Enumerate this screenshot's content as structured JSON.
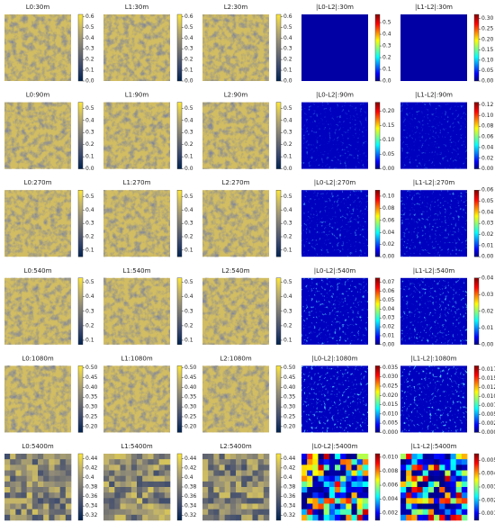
{
  "chart_data": [
    {
      "type": "image",
      "title": "L0:30m",
      "colormap": "cividis",
      "ylim": [
        0,
        0.62
      ],
      "yticks": [
        {
          "value": 0,
          "label": "0.0"
        },
        0.1,
        0.2,
        0.3,
        0.4,
        0.5,
        0.6
      ]
    },
    {
      "type": "image",
      "title": "L1:30m",
      "colormap": "cividis",
      "ylim": [
        0,
        0.62
      ],
      "yticks": [
        {
          "value": 0,
          "label": "0.0"
        },
        0.1,
        0.2,
        0.3,
        0.4,
        0.5,
        0.6
      ]
    },
    {
      "type": "image",
      "title": "L2:30m",
      "colormap": "cividis",
      "ylim": [
        0,
        0.62
      ],
      "yticks": [
        {
          "value": 0,
          "label": "0.0"
        },
        0.1,
        0.2,
        0.3,
        0.4,
        0.5,
        0.6
      ]
    },
    {
      "type": "image",
      "title": "|L0-L2|:30m",
      "colormap": "jet",
      "ylim": [
        0,
        0.57
      ],
      "yticks": [
        {
          "value": 0,
          "label": "0.0"
        },
        0.1,
        0.2,
        0.3,
        0.4,
        0.5
      ]
    },
    {
      "type": "image",
      "title": "|L1-L2|:30m",
      "colormap": "jet",
      "ylim": [
        0,
        0.32
      ],
      "yticks": [
        {
          "value": 0,
          "label": "0.00"
        },
        0.05,
        {
          "value": 0.1,
          "label": "0.10"
        },
        0.15,
        {
          "value": 0.2,
          "label": "0.20"
        },
        0.25,
        {
          "value": 0.3,
          "label": "0.30"
        }
      ]
    },
    {
      "type": "image",
      "title": "L0:90m",
      "colormap": "cividis",
      "ylim": [
        0,
        0.55
      ],
      "yticks": [
        {
          "value": 0,
          "label": "0.0"
        },
        0.1,
        0.2,
        0.3,
        0.4,
        0.5
      ]
    },
    {
      "type": "image",
      "title": "L1:90m",
      "colormap": "cividis",
      "ylim": [
        0,
        0.55
      ],
      "yticks": [
        {
          "value": 0,
          "label": "0.0"
        },
        0.1,
        0.2,
        0.3,
        0.4,
        0.5
      ]
    },
    {
      "type": "image",
      "title": "L2:90m",
      "colormap": "cividis",
      "ylim": [
        0,
        0.55
      ],
      "yticks": [
        {
          "value": 0,
          "label": "0.0"
        },
        0.1,
        0.2,
        0.3,
        0.4,
        0.5
      ]
    },
    {
      "type": "image",
      "title": "|L0-L2|:90m",
      "colormap": "jet",
      "ylim": [
        0,
        0.23
      ],
      "yticks": [
        {
          "value": 0,
          "label": "0.00"
        },
        0.05,
        {
          "value": 0.1,
          "label": "0.10"
        },
        0.15,
        {
          "value": 0.2,
          "label": "0.20"
        }
      ]
    },
    {
      "type": "image",
      "title": "|L1-L2|:90m",
      "colormap": "jet",
      "ylim": [
        0,
        0.125
      ],
      "yticks": [
        {
          "value": 0,
          "label": "0.00"
        },
        0.02,
        0.04,
        0.06,
        0.08,
        {
          "value": 0.1,
          "label": "0.10"
        },
        0.12
      ]
    },
    {
      "type": "image",
      "title": "L0:270m",
      "colormap": "cividis",
      "ylim": [
        0.05,
        0.55
      ],
      "yticks": [
        0.1,
        0.2,
        0.3,
        0.4,
        0.5
      ]
    },
    {
      "type": "image",
      "title": "L1:270m",
      "colormap": "cividis",
      "ylim": [
        0.05,
        0.55
      ],
      "yticks": [
        0.1,
        0.2,
        0.3,
        0.4,
        0.5
      ]
    },
    {
      "type": "image",
      "title": "L2:270m",
      "colormap": "cividis",
      "ylim": [
        0.05,
        0.55
      ],
      "yticks": [
        0.1,
        0.2,
        0.3,
        0.4,
        0.5
      ]
    },
    {
      "type": "image",
      "title": "|L0-L2|:270m",
      "colormap": "jet",
      "ylim": [
        0,
        0.11
      ],
      "yticks": [
        {
          "value": 0,
          "label": "0.00"
        },
        0.02,
        0.04,
        0.06,
        0.08,
        {
          "value": 0.1,
          "label": "0.10"
        }
      ]
    },
    {
      "type": "image",
      "title": "|L1-L2|:270m",
      "colormap": "jet",
      "ylim": [
        0,
        0.06
      ],
      "yticks": [
        {
          "value": 0,
          "label": "0.00"
        },
        0.01,
        0.02,
        0.03,
        0.04,
        0.05,
        0.06
      ]
    },
    {
      "type": "image",
      "title": "L0:540m",
      "colormap": "cividis",
      "ylim": [
        0.07,
        0.53
      ],
      "yticks": [
        0.1,
        0.2,
        0.3,
        0.4,
        0.5
      ]
    },
    {
      "type": "image",
      "title": "L1:540m",
      "colormap": "cividis",
      "ylim": [
        0.07,
        0.53
      ],
      "yticks": [
        0.1,
        0.2,
        0.3,
        0.4,
        0.5
      ]
    },
    {
      "type": "image",
      "title": "L2:540m",
      "colormap": "cividis",
      "ylim": [
        0.07,
        0.53
      ],
      "yticks": [
        0.1,
        0.2,
        0.3,
        0.4,
        0.5
      ]
    },
    {
      "type": "image",
      "title": "|L0-L2|:540m",
      "colormap": "jet",
      "ylim": [
        0,
        0.075
      ],
      "yticks": [
        {
          "value": 0,
          "label": "0.00"
        },
        0.01,
        0.02,
        0.03,
        0.04,
        0.05,
        0.06,
        0.07
      ]
    },
    {
      "type": "image",
      "title": "|L1-L2|:540m",
      "colormap": "jet",
      "ylim": [
        0,
        0.04
      ],
      "yticks": [
        {
          "value": 0,
          "label": "0.00"
        },
        0.01,
        0.02,
        0.03,
        0.04
      ]
    },
    {
      "type": "image",
      "title": "L0:1080m",
      "colormap": "cividis",
      "ylim": [
        0.17,
        0.51
      ],
      "yticks": [
        {
          "value": 0.2,
          "label": "0.20"
        },
        0.25,
        {
          "value": 0.3,
          "label": "0.30"
        },
        0.35,
        {
          "value": 0.4,
          "label": "0.40"
        },
        0.45,
        {
          "value": 0.5,
          "label": "0.50"
        }
      ]
    },
    {
      "type": "image",
      "title": "L1:1080m",
      "colormap": "cividis",
      "ylim": [
        0.17,
        0.51
      ],
      "yticks": [
        {
          "value": 0.2,
          "label": "0.20"
        },
        0.25,
        {
          "value": 0.3,
          "label": "0.30"
        },
        0.35,
        {
          "value": 0.4,
          "label": "0.40"
        },
        0.45,
        {
          "value": 0.5,
          "label": "0.50"
        }
      ]
    },
    {
      "type": "image",
      "title": "L2:1080m",
      "colormap": "cividis",
      "ylim": [
        0.17,
        0.51
      ],
      "yticks": [
        {
          "value": 0.2,
          "label": "0.20"
        },
        0.25,
        {
          "value": 0.3,
          "label": "0.30"
        },
        0.35,
        {
          "value": 0.4,
          "label": "0.40"
        },
        0.45,
        {
          "value": 0.5,
          "label": "0.50"
        }
      ]
    },
    {
      "type": "image",
      "title": "|L0-L2|:1080m",
      "colormap": "jet",
      "ylim": [
        0,
        0.036
      ],
      "yticks": [
        {
          "value": 0,
          "label": "0.000"
        },
        0.005,
        {
          "value": 0.01,
          "label": "0.010"
        },
        0.015,
        {
          "value": 0.02,
          "label": "0.020"
        },
        0.025,
        {
          "value": 0.03,
          "label": "0.030"
        },
        0.035
      ]
    },
    {
      "type": "image",
      "title": "|L1-L2|:1080m",
      "colormap": "jet",
      "ylim": [
        0,
        0.0185
      ],
      "yticks": [
        {
          "value": 0,
          "label": "0.0000"
        },
        0.0025,
        {
          "value": 0.005,
          "label": "0.0050"
        },
        0.0075,
        {
          "value": 0.01,
          "label": "0.0100"
        },
        0.0125,
        {
          "value": 0.015,
          "label": "0.0150"
        },
        0.0175
      ]
    },
    {
      "type": "image",
      "title": "L0:5400m",
      "colormap": "cividis",
      "ylim": [
        0.31,
        0.45
      ],
      "yticks": [
        0.32,
        0.34,
        0.36,
        0.38,
        0.4,
        0.42,
        0.44
      ]
    },
    {
      "type": "image",
      "title": "L1:5400m",
      "colormap": "cividis",
      "ylim": [
        0.31,
        0.45
      ],
      "yticks": [
        0.32,
        0.34,
        0.36,
        0.38,
        0.4,
        0.42,
        0.44
      ]
    },
    {
      "type": "image",
      "title": "L2:5400m",
      "colormap": "cividis",
      "ylim": [
        0.31,
        0.45
      ],
      "yticks": [
        0.32,
        0.34,
        0.36,
        0.38,
        0.4,
        0.42,
        0.44
      ]
    },
    {
      "type": "image",
      "title": "|L0-L2|:5400m",
      "colormap": "jet",
      "ylim": [
        0.001,
        0.0105
      ],
      "yticks": [
        0.002,
        0.004,
        0.006,
        0.008,
        {
          "value": 0.01,
          "label": "0.010"
        }
      ]
    },
    {
      "type": "image",
      "title": "|L1-L2|:5400m",
      "colormap": "jet",
      "ylim": [
        0.0005,
        0.0055
      ],
      "yticks": [
        0.001,
        0.002,
        0.003,
        0.004,
        0.005
      ]
    }
  ]
}
